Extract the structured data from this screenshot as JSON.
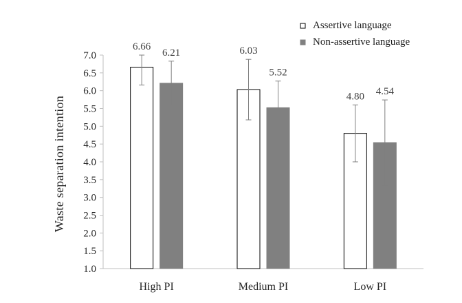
{
  "chart_data": {
    "type": "bar",
    "title": "",
    "xlabel": "",
    "ylabel": "Waste  separation  intention",
    "categories": [
      "High PI",
      "Medium PI",
      "Low PI"
    ],
    "series": [
      {
        "name": "Assertive language",
        "values": [
          6.66,
          6.03,
          4.8
        ],
        "labels": [
          "6.66",
          "6.03",
          "4.80"
        ],
        "error": [
          0.5,
          0.85,
          0.8
        ],
        "fill": "#ffffff",
        "stroke": "#000000"
      },
      {
        "name": "Non-assertive language",
        "values": [
          6.21,
          5.52,
          4.54
        ],
        "labels": [
          "6.21",
          "5.52",
          "4.54"
        ],
        "error": [
          0.62,
          0.75,
          1.2
        ],
        "fill": "#808080",
        "stroke": "#808080"
      }
    ],
    "ylim": [
      1.0,
      7.0
    ],
    "yticks": [
      "1.0",
      "1.5",
      "2.0",
      "2.5",
      "3.0",
      "3.5",
      "4.0",
      "4.5",
      "5.0",
      "5.5",
      "6.0",
      "6.5",
      "7.0"
    ],
    "legend_position": "top-right",
    "grid": false
  }
}
